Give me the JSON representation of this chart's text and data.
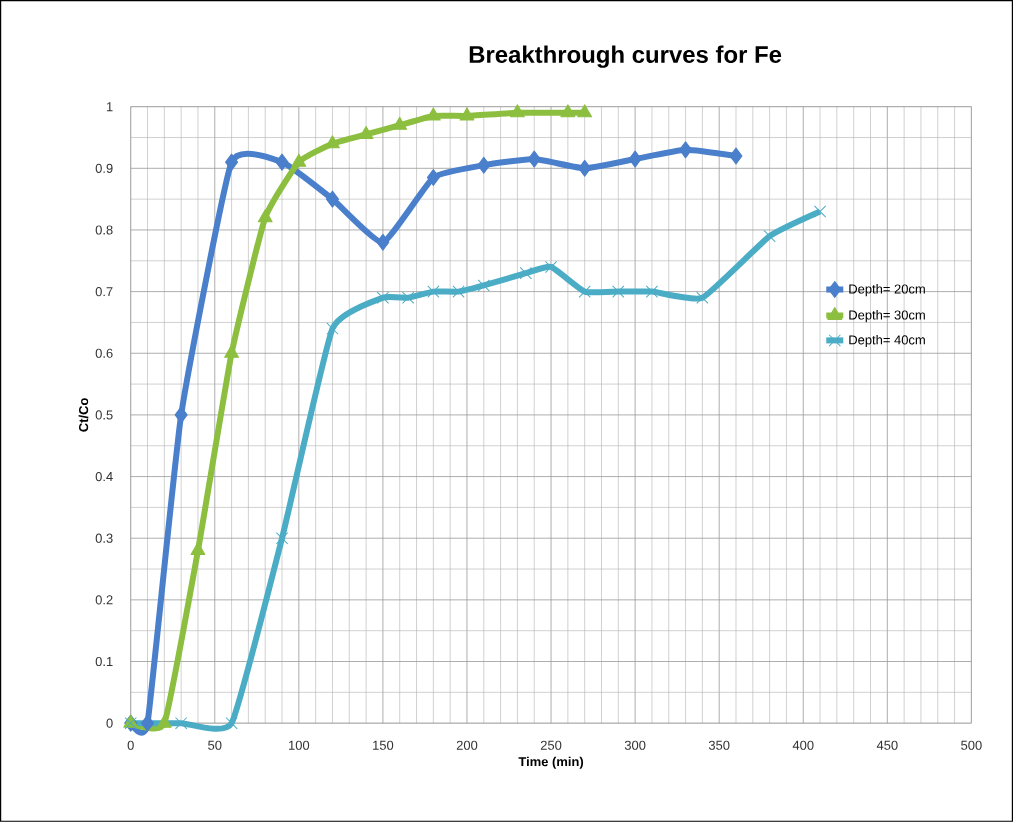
{
  "chart_data": {
    "type": "line",
    "title": "Breakthrough curves for Fe",
    "xlabel": "Time (min)",
    "ylabel": "Ct/Co",
    "xlim": [
      0,
      500
    ],
    "ylim": [
      0,
      1
    ],
    "xticks": [
      0,
      50,
      100,
      150,
      200,
      250,
      300,
      350,
      400,
      450,
      500
    ],
    "yticks": [
      0,
      0.1,
      0.2,
      0.3,
      0.4,
      0.5,
      0.6,
      0.7,
      0.8,
      0.9,
      1
    ],
    "grid": true,
    "legend": "right",
    "series": [
      {
        "name": "Depth= 20cm",
        "color": "#4a7fcb",
        "marker": "diamond",
        "x": [
          0,
          10,
          30,
          60,
          90,
          120,
          150,
          180,
          210,
          240,
          270,
          300,
          330,
          360
        ],
        "values": [
          0,
          0,
          0.5,
          0.91,
          0.91,
          0.85,
          0.78,
          0.885,
          0.905,
          0.915,
          0.9,
          0.915,
          0.93,
          0.92
        ]
      },
      {
        "name": "Depth= 30cm",
        "color": "#8cbf3f",
        "marker": "triangle",
        "x": [
          0,
          20,
          40,
          60,
          80,
          100,
          120,
          140,
          160,
          180,
          200,
          230,
          260,
          270
        ],
        "values": [
          0,
          0,
          0.28,
          0.6,
          0.82,
          0.91,
          0.94,
          0.955,
          0.97,
          0.985,
          0.985,
          0.99,
          0.99,
          0.99
        ]
      },
      {
        "name": "Depth= 40cm",
        "color": "#4bacc6",
        "marker": "cross",
        "x": [
          0,
          30,
          60,
          90,
          120,
          150,
          165,
          180,
          195,
          210,
          235,
          250,
          270,
          290,
          310,
          340,
          380,
          410
        ],
        "values": [
          0,
          0,
          0,
          0.3,
          0.64,
          0.69,
          0.69,
          0.7,
          0.7,
          0.71,
          0.73,
          0.74,
          0.7,
          0.7,
          0.7,
          0.69,
          0.79,
          0.83
        ]
      }
    ]
  }
}
